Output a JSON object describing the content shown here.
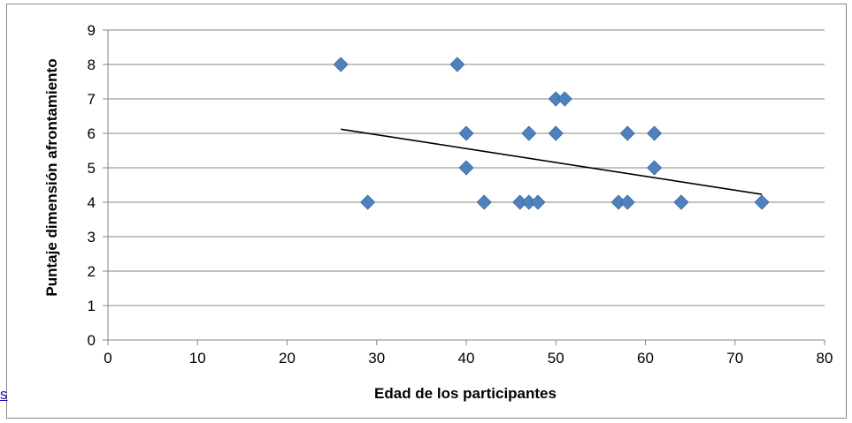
{
  "chart_data": {
    "type": "scatter",
    "title": "",
    "xlabel": "Edad de los participantes",
    "ylabel": "Puntaje dimensión afrontamiento",
    "xlim": [
      0,
      80
    ],
    "ylim": [
      0,
      9
    ],
    "xticks": [
      0,
      10,
      20,
      30,
      40,
      50,
      60,
      70,
      80
    ],
    "yticks": [
      0,
      1,
      2,
      3,
      4,
      5,
      6,
      7,
      8,
      9
    ],
    "grid": "horizontal",
    "legend": "none",
    "marker_color": "#4f81bd",
    "trendline_color": "#000000",
    "series": [
      {
        "points": [
          [
            26,
            8
          ],
          [
            39,
            8
          ],
          [
            50,
            7
          ],
          [
            51,
            7
          ],
          [
            40,
            6
          ],
          [
            47,
            6
          ],
          [
            50,
            6
          ],
          [
            58,
            6
          ],
          [
            61,
            6
          ],
          [
            40,
            5
          ],
          [
            61,
            5
          ],
          [
            29,
            4
          ],
          [
            42,
            4
          ],
          [
            46,
            4
          ],
          [
            47,
            4
          ],
          [
            48,
            4
          ],
          [
            57,
            4
          ],
          [
            58,
            4
          ],
          [
            64,
            4
          ],
          [
            73,
            4
          ]
        ]
      }
    ],
    "trendline": {
      "x": [
        26,
        73
      ],
      "y": [
        6.12,
        4.23
      ]
    }
  },
  "stray_link_text": "s"
}
